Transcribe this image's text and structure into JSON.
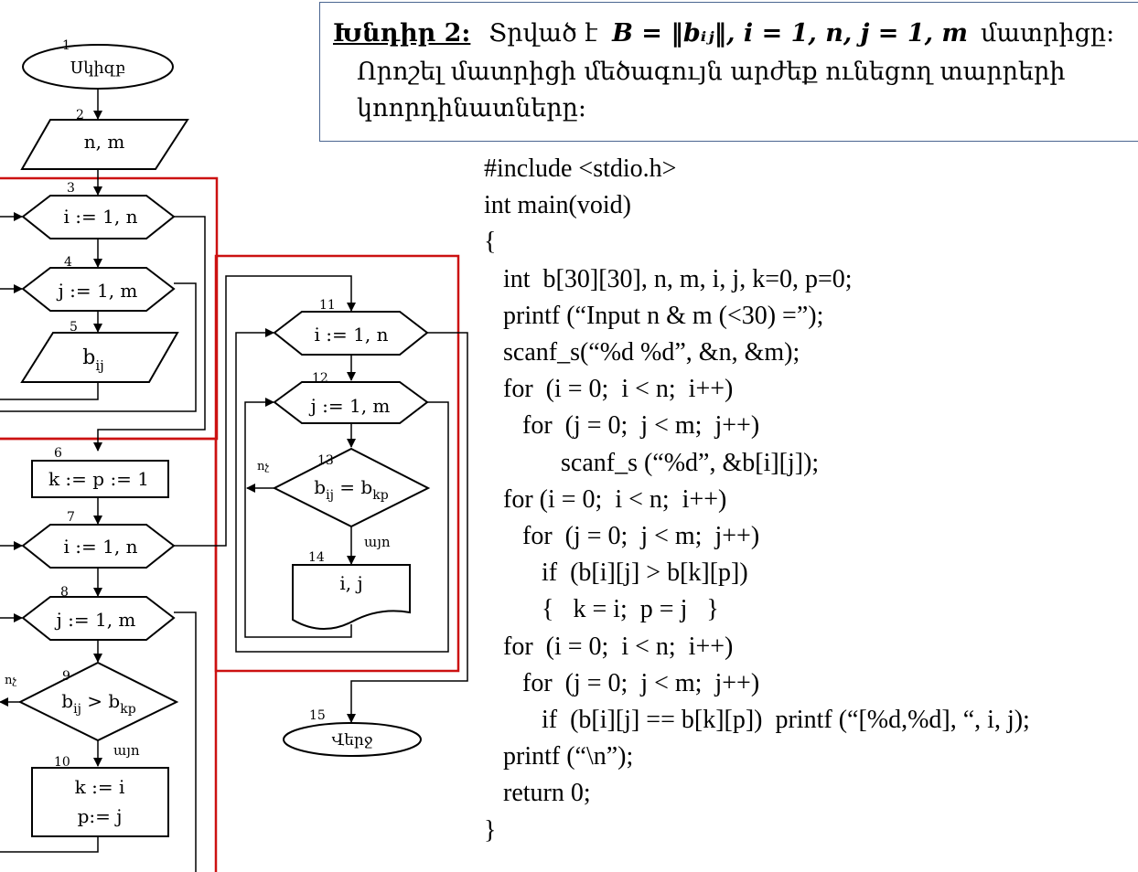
{
  "task": {
    "label": "Խնդիր 2:",
    "given": "Տրված է",
    "formula": "B = ‖bᵢⱼ‖,  i = 1, n,  j = 1, m",
    "tail": "մատրիցը:",
    "line2": "Որոշել մատրիցի մեծագույն արժեք ունեցող տարրերի",
    "line3": "կոորդինատները:"
  },
  "code": [
    "#include <stdio.h>",
    "int main(void)",
    "{",
    "   int  b[30][30], n, m, i, j, k=0, p=0;",
    "   printf (“Input n & m (<30) =”);",
    "   scanf_s(“%d %d”, &n, &m);",
    "   for  (i = 0;  i < n;  i++)",
    "      for  (j = 0;  j < m;  j++)",
    "            scanf_s (“%d”, &b[i][j]);",
    "   for (i = 0;  i < n;  i++)",
    "      for  (j = 0;  j < m;  j++)",
    "         if  (b[i][j] > b[k][p])",
    "         {   k = i;  p = j   }",
    "   for  (i = 0;  i < n;  i++)",
    "      for  (j = 0;  j < m;  j++)",
    "         if  (b[i][j] == b[k][p])  printf (“[%d,%d], “, i, j);",
    "   printf (“\\n”);",
    "   return 0;",
    "}"
  ],
  "flowchart": {
    "nodes": {
      "n1": {
        "num": "1",
        "text": "Սկիզբ"
      },
      "n2": {
        "num": "2",
        "text": "n, m"
      },
      "n3": {
        "num": "3",
        "text": "i := 1, n"
      },
      "n4": {
        "num": "4",
        "text": "j := 1, m"
      },
      "n5": {
        "num": "5",
        "text": "b",
        "sub": "ij"
      },
      "n6": {
        "num": "6",
        "text": "k := p := 1"
      },
      "n7": {
        "num": "7",
        "text": "i := 1, n"
      },
      "n8": {
        "num": "8",
        "text": "j := 1, m"
      },
      "n9": {
        "num": "9",
        "lhs": "b",
        "lhs_sub": "ij",
        "op": " > ",
        "rhs": "b",
        "rhs_sub": "kp"
      },
      "n10": {
        "num": "10",
        "line1": "k := i",
        "line2": "p:= j"
      },
      "n11": {
        "num": "11",
        "text": "i := 1, n"
      },
      "n12": {
        "num": "12",
        "text": "j := 1, m"
      },
      "n13": {
        "num": "13",
        "lhs": "b",
        "lhs_sub": "ij",
        "op": " = ",
        "rhs": "b",
        "rhs_sub": "kp"
      },
      "n14": {
        "num": "14",
        "text": "i, j"
      },
      "n15": {
        "num": "15",
        "text": "Վերջ"
      }
    },
    "labels": {
      "no": "ոչ",
      "yes": "այո"
    },
    "colors": {
      "box": "#cc1111",
      "line": "#000000"
    }
  }
}
